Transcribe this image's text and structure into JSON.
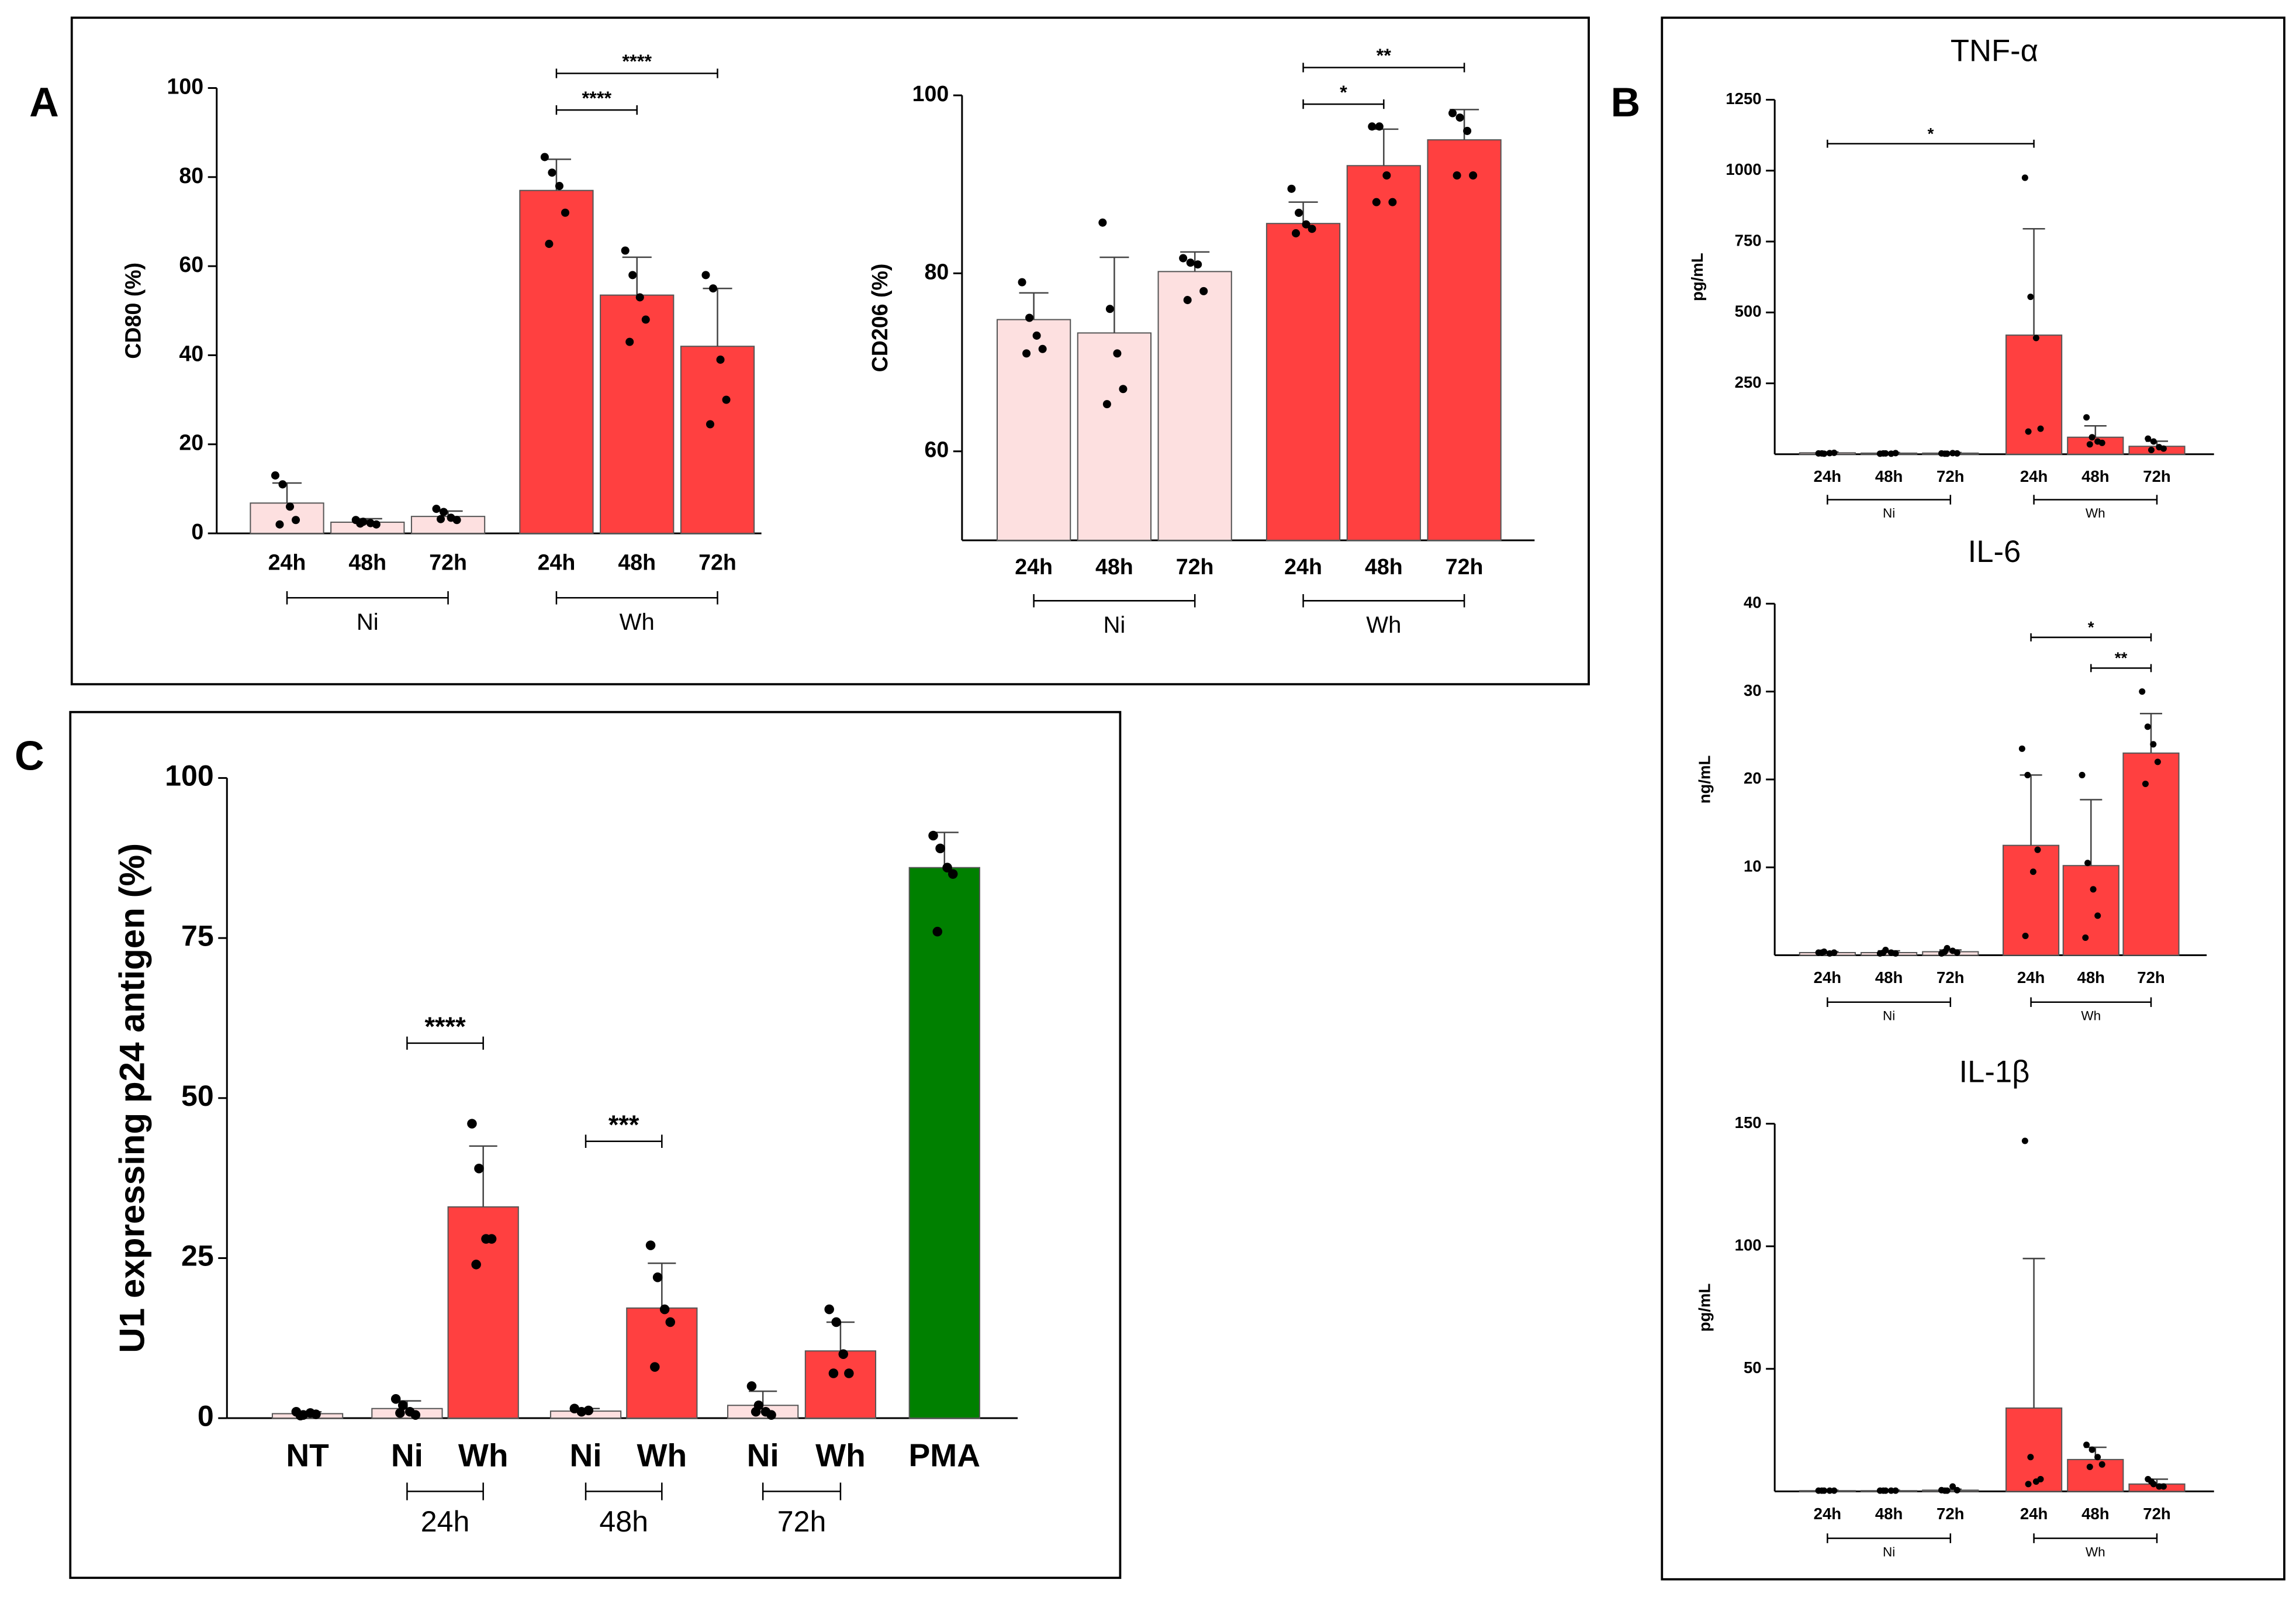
{
  "panels": [
    "A",
    "B",
    "C"
  ],
  "chart_data": [
    {
      "type": "bar",
      "ylabel": "CD80 (%)",
      "categories": [
        "24h",
        "48h",
        "72h",
        "24h",
        "48h",
        "72h"
      ],
      "values": [
        6.8,
        2.5,
        3.8,
        77,
        53.5,
        42
      ],
      "errors": [
        4.5,
        0.8,
        1.2,
        7,
        8.5,
        13
      ],
      "points": [
        [
          13,
          11,
          6,
          3,
          2
        ],
        [
          3,
          2.6,
          2.3,
          2,
          2.2
        ],
        [
          5.5,
          4.8,
          3.5,
          3,
          3.2
        ],
        [
          84.5,
          81,
          78,
          72,
          65
        ],
        [
          63.5,
          58,
          53,
          48,
          43
        ],
        [
          58,
          55,
          39,
          30,
          24.5
        ]
      ],
      "colors": [
        "#fde0e0",
        "#fde0e0",
        "#fde0e0",
        "#ff4040",
        "#ff4040",
        "#ff4040"
      ],
      "ylim": [
        0,
        100
      ],
      "yticks": [
        0,
        20,
        40,
        60,
        80,
        100
      ],
      "groups": [
        {
          "label": "Ni",
          "from": 0,
          "to": 2
        },
        {
          "label": "Wh",
          "from": 3,
          "to": 5
        }
      ],
      "annotations": [
        {
          "label": "****",
          "from": 3,
          "to": 4
        },
        {
          "label": "****",
          "from": 3,
          "to": 5
        }
      ]
    },
    {
      "type": "bar",
      "ylabel": "CD206 (%)",
      "categories": [
        "24h",
        "48h",
        "72h",
        "24h",
        "48h",
        "72h"
      ],
      "values": [
        74.8,
        73.3,
        80.2,
        85.6,
        92.1,
        95.0
      ],
      "errors": [
        3,
        8.5,
        2.2,
        2.4,
        4.1,
        3.4
      ],
      "points": [
        [
          79,
          75,
          73,
          71.5,
          71
        ],
        [
          85.7,
          76,
          71,
          67,
          65.3
        ],
        [
          81.7,
          81.2,
          81,
          78,
          77
        ],
        [
          89.5,
          86.8,
          85.5,
          85,
          84.5
        ],
        [
          96.5,
          96.5,
          91,
          88,
          88
        ],
        [
          98,
          97.5,
          96,
          91,
          91
        ]
      ],
      "colors": [
        "#fde0e0",
        "#fde0e0",
        "#fde0e0",
        "#ff4040",
        "#ff4040",
        "#ff4040"
      ],
      "ylim": [
        50,
        100
      ],
      "yticks": [
        60,
        80,
        100
      ],
      "groups": [
        {
          "label": "Ni",
          "from": 0,
          "to": 2
        },
        {
          "label": "Wh",
          "from": 3,
          "to": 5
        }
      ],
      "annotations": [
        {
          "label": "*",
          "from": 3,
          "to": 4
        },
        {
          "label": "**",
          "from": 3,
          "to": 5
        }
      ]
    },
    {
      "type": "bar",
      "title": "TNF-α",
      "ylabel": "pg/mL",
      "categories": [
        "24h",
        "48h",
        "72h",
        "24h",
        "48h",
        "72h"
      ],
      "values": [
        5,
        4,
        4,
        420,
        60,
        28
      ],
      "errors": [
        3,
        2,
        2,
        375,
        40,
        18
      ],
      "points": [
        [
          3,
          2,
          4,
          5,
          3
        ],
        [
          2,
          3,
          2,
          4,
          3
        ],
        [
          3,
          2,
          4,
          3,
          2
        ],
        [
          975,
          555,
          410,
          90,
          80
        ],
        [
          130,
          60,
          45,
          40,
          35
        ],
        [
          55,
          45,
          25,
          20,
          15
        ]
      ],
      "colors": [
        "#fde0e0",
        "#fde0e0",
        "#fde0e0",
        "#ff4040",
        "#ff4040",
        "#ff4040"
      ],
      "ylim": [
        0,
        1250
      ],
      "yticks": [
        250,
        500,
        750,
        1000,
        1250
      ],
      "groups": [
        {
          "label": "Ni",
          "from": 0,
          "to": 2
        },
        {
          "label": "Wh",
          "from": 3,
          "to": 5
        }
      ],
      "annotations": [
        {
          "label": "*",
          "from": 0,
          "to": 3
        }
      ]
    },
    {
      "type": "bar",
      "title": "IL-6",
      "ylabel": "ng/mL",
      "categories": [
        "24h",
        "48h",
        "72h",
        "24h",
        "48h",
        "72h"
      ],
      "values": [
        0.3,
        0.3,
        0.4,
        12.5,
        10.2,
        23
      ],
      "errors": [
        0.1,
        0.2,
        0.2,
        8,
        7.5,
        4.5
      ],
      "points": [
        [
          0.3,
          0.4,
          0.2,
          0.3,
          0.3
        ],
        [
          0.2,
          0.6,
          0.3,
          0.2,
          0.3
        ],
        [
          0.2,
          0.8,
          0.5,
          0.3,
          0.4
        ],
        [
          23.5,
          20.5,
          9.5,
          12,
          2.2
        ],
        [
          20.5,
          10.5,
          7.5,
          4.5,
          2
        ],
        [
          30,
          26,
          24,
          22,
          19.5
        ]
      ],
      "colors": [
        "#fde0e0",
        "#fde0e0",
        "#fde0e0",
        "#ff4040",
        "#ff4040",
        "#ff4040"
      ],
      "ylim": [
        0,
        40
      ],
      "yticks": [
        10,
        20,
        30,
        40
      ],
      "groups": [
        {
          "label": "Ni",
          "from": 0,
          "to": 2
        },
        {
          "label": "Wh",
          "from": 3,
          "to": 5
        }
      ],
      "annotations": [
        {
          "label": "*",
          "from": 3,
          "to": 5
        },
        {
          "label": "**",
          "from": 4,
          "to": 5
        }
      ]
    },
    {
      "type": "bar",
      "title": "IL-1β",
      "ylabel": "pg/mL",
      "categories": [
        "24h",
        "48h",
        "72h",
        "24h",
        "48h",
        "72h"
      ],
      "values": [
        0.3,
        0.3,
        0.5,
        34,
        13,
        3
      ],
      "errors": [
        0.2,
        0.2,
        0.4,
        61,
        5,
        2
      ],
      "points": [
        [
          0.3,
          0.3,
          0.3,
          0.3,
          0.3
        ],
        [
          0.3,
          0.3,
          0.3,
          0.3,
          0.3
        ],
        [
          0.5,
          0.3,
          2,
          0.5,
          0.3
        ],
        [
          143,
          14,
          4,
          5,
          3
        ],
        [
          19,
          17,
          14,
          11,
          10
        ],
        [
          5,
          3,
          2,
          2,
          4
        ]
      ],
      "colors": [
        "#fde0e0",
        "#fde0e0",
        "#fde0e0",
        "#ff4040",
        "#ff4040",
        "#ff4040"
      ],
      "ylim": [
        0,
        150
      ],
      "yticks": [
        50,
        100,
        150
      ],
      "groups": [
        {
          "label": "Ni",
          "from": 0,
          "to": 2
        },
        {
          "label": "Wh",
          "from": 3,
          "to": 5
        }
      ],
      "annotations": []
    },
    {
      "type": "bar",
      "ylabel": "U1 expressing p24 antigen (%)",
      "categories": [
        "NT",
        "Ni",
        "Wh",
        "Ni",
        "Wh",
        "Ni",
        "Wh",
        "PMA"
      ],
      "values": [
        0.7,
        1.5,
        33,
        1.1,
        17.2,
        2,
        10.5,
        86
      ],
      "errors": [
        0.3,
        1.2,
        9.5,
        0.4,
        7,
        2.2,
        4.5,
        5.5
      ],
      "points": [
        [
          1,
          0.5,
          0.8,
          0.6,
          0.4
        ],
        [
          3,
          2,
          1,
          0.5,
          0.8
        ],
        [
          46,
          39,
          28,
          28,
          24
        ],
        [
          1.5,
          1,
          1.2
        ],
        [
          27,
          22,
          17,
          15,
          8
        ],
        [
          5,
          2,
          1,
          0.5,
          1
        ],
        [
          17,
          15,
          10,
          7,
          7
        ],
        [
          91,
          89,
          86,
          85,
          76
        ]
      ],
      "colors": [
        "#fde0e0",
        "#fde0e0",
        "#ff4040",
        "#fde0e0",
        "#ff4040",
        "#fde0e0",
        "#ff4040",
        "#008000"
      ],
      "ylim": [
        0,
        100
      ],
      "yticks": [
        0,
        25,
        50,
        75,
        100
      ],
      "groups": [
        {
          "label": "24h",
          "from": 1,
          "to": 2
        },
        {
          "label": "48h",
          "from": 3,
          "to": 4
        },
        {
          "label": "72h",
          "from": 5,
          "to": 6
        }
      ],
      "annotations": [
        {
          "label": "****",
          "from": 1,
          "to": 2
        },
        {
          "label": "***",
          "from": 3,
          "to": 4
        }
      ]
    }
  ]
}
